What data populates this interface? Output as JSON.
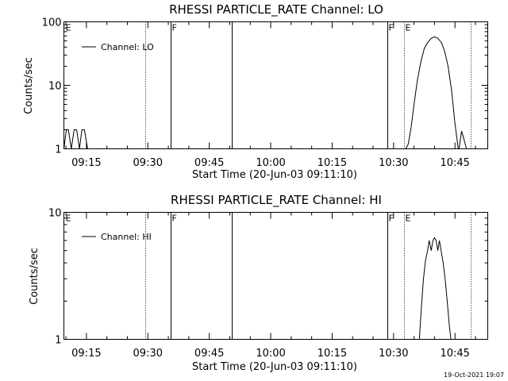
{
  "footer_date": "19-Oct-2021 19:07",
  "chart_data": [
    {
      "type": "line",
      "title": "RHESSI PARTICLE_RATE Channel: LO",
      "xlabel": "Start Time (20-Jun-03 09:11:10)",
      "ylabel": "Counts/sec",
      "yscale": "log",
      "ylim": [
        1,
        100
      ],
      "xlim_minutes": [
        9.5,
        113.0
      ],
      "x_tick_labels": [
        "09:15",
        "09:30",
        "09:45",
        "10:00",
        "10:15",
        "10:30",
        "10:45"
      ],
      "x_tick_minutes": [
        15,
        30,
        45,
        60,
        75,
        90,
        105
      ],
      "y_tick_labels": [
        "1",
        "10",
        "100"
      ],
      "y_tick_values": [
        1,
        10,
        100
      ],
      "legend": "Channel: LO",
      "legend_position": "top-left",
      "markers": [
        {
          "label": "E",
          "minute": 9.5,
          "style": "none"
        },
        {
          "label": "",
          "minute": 29.3,
          "style": "dotted"
        },
        {
          "label": "F",
          "minute": 35.5,
          "style": "solid"
        },
        {
          "label": "",
          "minute": 50.5,
          "style": "solid"
        },
        {
          "label": "F",
          "minute": 88.4,
          "style": "solid"
        },
        {
          "label": "E",
          "minute": 92.5,
          "style": "dotted"
        },
        {
          "label": "",
          "minute": 108.8,
          "style": "dotted"
        }
      ],
      "series": [
        {
          "name": "Channel: LO",
          "segments": [
            {
              "x": [
                9.5,
                10.1,
                10.6,
                11.3,
                12.0,
                12.6,
                13.3,
                13.9,
                14.5,
                15.3
              ],
              "y": [
                1.0,
                2.0,
                2.0,
                1.0,
                2.0,
                2.0,
                1.0,
                2.0,
                2.0,
                1.0
              ]
            },
            {
              "x": [
                93.0,
                93.6,
                94.3,
                95.0,
                95.8,
                96.7,
                97.5,
                98.3,
                99.2,
                100.0,
                100.8,
                101.7,
                102.5,
                103.3,
                104.2,
                105.0,
                105.8,
                106.7,
                107.5
              ],
              "y": [
                1.0,
                1.2,
                2.2,
                5.0,
                12.0,
                24.0,
                38.0,
                47.0,
                55.0,
                58.0,
                55.0,
                47.0,
                34.0,
                20.0,
                8.0,
                2.5,
                1.0,
                1.0,
                1.0
              ]
            },
            {
              "x": [
                106.0,
                106.6,
                107.2,
                107.8
              ],
              "y": [
                1.0,
                1.9,
                1.4,
                1.0
              ]
            }
          ]
        }
      ]
    },
    {
      "type": "line",
      "title": "RHESSI PARTICLE_RATE Channel: HI",
      "xlabel": "Start Time (20-Jun-03 09:11:10)",
      "ylabel": "Counts/sec",
      "yscale": "log",
      "ylim": [
        1,
        10
      ],
      "xlim_minutes": [
        9.5,
        113.0
      ],
      "x_tick_labels": [
        "09:15",
        "09:30",
        "09:45",
        "10:00",
        "10:15",
        "10:30",
        "10:45"
      ],
      "x_tick_minutes": [
        15,
        30,
        45,
        60,
        75,
        90,
        105
      ],
      "y_tick_labels": [
        "1",
        "10"
      ],
      "y_tick_values": [
        1,
        10
      ],
      "legend": "Channel: HI",
      "legend_position": "top-left",
      "markers": [
        {
          "label": "E",
          "minute": 9.5,
          "style": "none"
        },
        {
          "label": "",
          "minute": 29.3,
          "style": "dotted"
        },
        {
          "label": "F",
          "minute": 35.5,
          "style": "solid"
        },
        {
          "label": "",
          "minute": 50.5,
          "style": "solid"
        },
        {
          "label": "F",
          "minute": 88.4,
          "style": "solid"
        },
        {
          "label": "E",
          "minute": 92.5,
          "style": "dotted"
        },
        {
          "label": "",
          "minute": 108.8,
          "style": "dotted"
        }
      ],
      "series": [
        {
          "name": "Channel: HI",
          "segments": [
            {
              "x": [
                96.3,
                96.8,
                97.3,
                97.8,
                98.3,
                98.7,
                99.2,
                99.6,
                100.0,
                100.4,
                100.8,
                101.2,
                101.6,
                102.1,
                102.6,
                103.1,
                103.6,
                104.0
              ],
              "y": [
                1.0,
                1.8,
                3.0,
                4.2,
                5.0,
                6.0,
                5.0,
                6.0,
                6.3,
                6.0,
                5.0,
                6.0,
                5.0,
                4.0,
                3.0,
                2.0,
                1.3,
                1.0
              ]
            }
          ]
        }
      ]
    }
  ]
}
